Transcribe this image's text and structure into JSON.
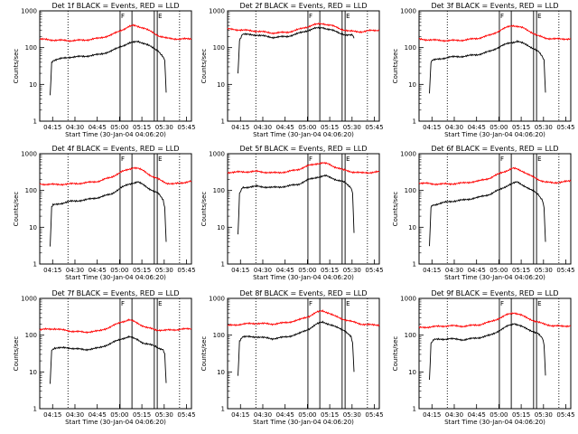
{
  "chart_data": {
    "type": "line",
    "xlabel": "Start Time (30-Jan-04 04:06:20)",
    "ylabel": "Counts/sec",
    "x_ticks": [
      "04:15",
      "04:30",
      "04:45",
      "05:00",
      "05:15",
      "05:30",
      "05:45"
    ],
    "x_tick_minutes": [
      8.67,
      23.67,
      38.67,
      53.67,
      68.67,
      83.67,
      98.67
    ],
    "xlim_minutes": [
      0,
      102
    ],
    "y_scale": "log",
    "ylim": [
      1,
      1000
    ],
    "y_ticks": [
      "1",
      "10",
      "100",
      "1000"
    ],
    "y_tick_values": [
      1,
      10,
      100,
      1000
    ],
    "markers": [
      {
        "label": "",
        "x_minute": 19
      },
      {
        "label": "F",
        "x_minute": 54
      },
      {
        "label": "",
        "x_minute": 62
      },
      {
        "label": "",
        "x_minute": 77
      },
      {
        "label": "E",
        "x_minute": 79
      },
      {
        "label": "",
        "x_minute": 94
      }
    ],
    "series_colors": {
      "events": "#000000",
      "lld": "#ff0000"
    },
    "panels": [
      {
        "title": "Det 1f BLACK = Events, RED = LLD",
        "events": [
          [
            7,
            5
          ],
          [
            8,
            40
          ],
          [
            9,
            45
          ],
          [
            12,
            48
          ],
          [
            20,
            55
          ],
          [
            30,
            58
          ],
          [
            40,
            65
          ],
          [
            48,
            80
          ],
          [
            55,
            110
          ],
          [
            60,
            130
          ],
          [
            66,
            150
          ],
          [
            70,
            130
          ],
          [
            74,
            110
          ],
          [
            78,
            90
          ],
          [
            80,
            80
          ],
          [
            83,
            55
          ],
          [
            84,
            45
          ],
          [
            85,
            6
          ]
        ],
        "lld": [
          [
            0,
            170
          ],
          [
            10,
            160
          ],
          [
            20,
            155
          ],
          [
            30,
            160
          ],
          [
            40,
            180
          ],
          [
            48,
            220
          ],
          [
            55,
            300
          ],
          [
            60,
            370
          ],
          [
            63,
            400
          ],
          [
            66,
            380
          ],
          [
            70,
            340
          ],
          [
            75,
            270
          ],
          [
            80,
            210
          ],
          [
            85,
            180
          ],
          [
            90,
            175
          ],
          [
            95,
            170
          ],
          [
            102,
            175
          ]
        ]
      },
      {
        "title": "Det 2f BLACK = Events, RED = LLD",
        "events": [
          [
            7,
            20
          ],
          [
            8,
            160
          ],
          [
            10,
            230
          ],
          [
            20,
            220
          ],
          [
            30,
            190
          ],
          [
            40,
            200
          ],
          [
            50,
            260
          ],
          [
            58,
            330
          ],
          [
            64,
            350
          ],
          [
            70,
            300
          ],
          [
            75,
            250
          ],
          [
            80,
            220
          ],
          [
            84,
            215
          ],
          [
            85,
            180
          ]
        ],
        "lld": [
          [
            0,
            320
          ],
          [
            10,
            300
          ],
          [
            20,
            280
          ],
          [
            30,
            250
          ],
          [
            40,
            260
          ],
          [
            50,
            330
          ],
          [
            58,
            420
          ],
          [
            64,
            450
          ],
          [
            70,
            400
          ],
          [
            76,
            320
          ],
          [
            82,
            280
          ],
          [
            90,
            270
          ],
          [
            96,
            290
          ],
          [
            102,
            300
          ]
        ]
      },
      {
        "title": "Det 3f BLACK = Events, RED = LLD",
        "events": [
          [
            7,
            6
          ],
          [
            8,
            40
          ],
          [
            9,
            45
          ],
          [
            20,
            55
          ],
          [
            30,
            58
          ],
          [
            40,
            65
          ],
          [
            48,
            80
          ],
          [
            55,
            110
          ],
          [
            60,
            130
          ],
          [
            66,
            150
          ],
          [
            70,
            130
          ],
          [
            74,
            110
          ],
          [
            78,
            90
          ],
          [
            80,
            80
          ],
          [
            83,
            55
          ],
          [
            84,
            45
          ],
          [
            85,
            6
          ]
        ],
        "lld": [
          [
            0,
            170
          ],
          [
            10,
            160
          ],
          [
            20,
            155
          ],
          [
            30,
            160
          ],
          [
            40,
            180
          ],
          [
            48,
            220
          ],
          [
            55,
            300
          ],
          [
            60,
            370
          ],
          [
            63,
            400
          ],
          [
            66,
            380
          ],
          [
            70,
            340
          ],
          [
            75,
            270
          ],
          [
            80,
            210
          ],
          [
            85,
            180
          ],
          [
            90,
            175
          ],
          [
            95,
            170
          ],
          [
            102,
            175
          ]
        ]
      },
      {
        "title": "Det 4f BLACK = Events, RED = LLD",
        "events": [
          [
            7,
            3
          ],
          [
            8,
            35
          ],
          [
            9,
            40
          ],
          [
            20,
            50
          ],
          [
            30,
            55
          ],
          [
            40,
            65
          ],
          [
            48,
            80
          ],
          [
            55,
            120
          ],
          [
            60,
            150
          ],
          [
            66,
            170
          ],
          [
            70,
            140
          ],
          [
            74,
            110
          ],
          [
            78,
            90
          ],
          [
            80,
            80
          ],
          [
            83,
            55
          ],
          [
            84,
            35
          ],
          [
            85,
            4
          ]
        ],
        "lld": [
          [
            0,
            150
          ],
          [
            10,
            145
          ],
          [
            20,
            150
          ],
          [
            30,
            160
          ],
          [
            40,
            180
          ],
          [
            48,
            230
          ],
          [
            55,
            320
          ],
          [
            60,
            380
          ],
          [
            63,
            420
          ],
          [
            66,
            400
          ],
          [
            70,
            340
          ],
          [
            75,
            250
          ],
          [
            80,
            200
          ],
          [
            85,
            160
          ],
          [
            90,
            150
          ],
          [
            95,
            160
          ],
          [
            102,
            180
          ]
        ]
      },
      {
        "title": "Det 5f BLACK = Events, RED = LLD",
        "events": [
          [
            7,
            6
          ],
          [
            8,
            80
          ],
          [
            10,
            120
          ],
          [
            20,
            130
          ],
          [
            30,
            120
          ],
          [
            40,
            130
          ],
          [
            48,
            150
          ],
          [
            55,
            200
          ],
          [
            60,
            230
          ],
          [
            66,
            250
          ],
          [
            70,
            220
          ],
          [
            74,
            190
          ],
          [
            78,
            170
          ],
          [
            80,
            150
          ],
          [
            83,
            120
          ],
          [
            84,
            90
          ],
          [
            85,
            7
          ]
        ],
        "lld": [
          [
            0,
            310
          ],
          [
            10,
            320
          ],
          [
            20,
            330
          ],
          [
            30,
            300
          ],
          [
            40,
            320
          ],
          [
            48,
            380
          ],
          [
            55,
            480
          ],
          [
            60,
            540
          ],
          [
            64,
            560
          ],
          [
            68,
            520
          ],
          [
            72,
            440
          ],
          [
            78,
            360
          ],
          [
            84,
            320
          ],
          [
            90,
            300
          ],
          [
            96,
            310
          ],
          [
            102,
            320
          ]
        ]
      },
      {
        "title": "Det 6f BLACK = Events, RED = LLD",
        "events": [
          [
            7,
            3
          ],
          [
            8,
            35
          ],
          [
            9,
            40
          ],
          [
            20,
            50
          ],
          [
            30,
            55
          ],
          [
            40,
            65
          ],
          [
            48,
            80
          ],
          [
            55,
            110
          ],
          [
            60,
            140
          ],
          [
            66,
            170
          ],
          [
            70,
            140
          ],
          [
            74,
            110
          ],
          [
            78,
            90
          ],
          [
            80,
            80
          ],
          [
            83,
            55
          ],
          [
            84,
            35
          ],
          [
            85,
            4
          ]
        ],
        "lld": [
          [
            0,
            160
          ],
          [
            10,
            150
          ],
          [
            20,
            150
          ],
          [
            30,
            160
          ],
          [
            40,
            180
          ],
          [
            48,
            220
          ],
          [
            55,
            300
          ],
          [
            60,
            360
          ],
          [
            63,
            400
          ],
          [
            66,
            380
          ],
          [
            70,
            330
          ],
          [
            75,
            250
          ],
          [
            80,
            200
          ],
          [
            85,
            170
          ],
          [
            90,
            160
          ],
          [
            95,
            170
          ],
          [
            102,
            180
          ]
        ]
      },
      {
        "title": "Det 7f BLACK = Events, RED = LLD",
        "events": [
          [
            7,
            5
          ],
          [
            8,
            40
          ],
          [
            10,
            45
          ],
          [
            20,
            45
          ],
          [
            30,
            40
          ],
          [
            40,
            45
          ],
          [
            48,
            60
          ],
          [
            55,
            80
          ],
          [
            60,
            90
          ],
          [
            66,
            75
          ],
          [
            70,
            60
          ],
          [
            74,
            55
          ],
          [
            78,
            50
          ],
          [
            80,
            45
          ],
          [
            83,
            40
          ],
          [
            84,
            30
          ],
          [
            85,
            5
          ]
        ],
        "lld": [
          [
            0,
            140
          ],
          [
            10,
            150
          ],
          [
            20,
            130
          ],
          [
            30,
            120
          ],
          [
            40,
            130
          ],
          [
            48,
            170
          ],
          [
            55,
            230
          ],
          [
            60,
            260
          ],
          [
            64,
            230
          ],
          [
            68,
            190
          ],
          [
            72,
            160
          ],
          [
            78,
            140
          ],
          [
            84,
            135
          ],
          [
            90,
            140
          ],
          [
            96,
            145
          ],
          [
            102,
            150
          ]
        ]
      },
      {
        "title": "Det 8f BLACK = Events, RED = LLD",
        "events": [
          [
            7,
            8
          ],
          [
            8,
            70
          ],
          [
            10,
            90
          ],
          [
            20,
            90
          ],
          [
            30,
            80
          ],
          [
            40,
            90
          ],
          [
            48,
            110
          ],
          [
            55,
            150
          ],
          [
            60,
            200
          ],
          [
            64,
            230
          ],
          [
            68,
            200
          ],
          [
            72,
            170
          ],
          [
            78,
            140
          ],
          [
            80,
            120
          ],
          [
            83,
            90
          ],
          [
            84,
            60
          ],
          [
            85,
            10
          ]
        ],
        "lld": [
          [
            0,
            180
          ],
          [
            10,
            200
          ],
          [
            20,
            210
          ],
          [
            30,
            200
          ],
          [
            40,
            220
          ],
          [
            48,
            260
          ],
          [
            55,
            330
          ],
          [
            60,
            420
          ],
          [
            64,
            460
          ],
          [
            68,
            400
          ],
          [
            72,
            330
          ],
          [
            78,
            270
          ],
          [
            84,
            230
          ],
          [
            90,
            200
          ],
          [
            96,
            190
          ],
          [
            102,
            190
          ]
        ]
      },
      {
        "title": "Det 9f BLACK = Events, RED = LLD",
        "events": [
          [
            7,
            6
          ],
          [
            8,
            60
          ],
          [
            10,
            75
          ],
          [
            20,
            80
          ],
          [
            30,
            75
          ],
          [
            40,
            85
          ],
          [
            48,
            100
          ],
          [
            55,
            140
          ],
          [
            60,
            180
          ],
          [
            64,
            210
          ],
          [
            68,
            180
          ],
          [
            72,
            150
          ],
          [
            78,
            120
          ],
          [
            80,
            110
          ],
          [
            83,
            80
          ],
          [
            84,
            55
          ],
          [
            85,
            8
          ]
        ],
        "lld": [
          [
            0,
            160
          ],
          [
            10,
            170
          ],
          [
            20,
            180
          ],
          [
            30,
            175
          ],
          [
            40,
            190
          ],
          [
            48,
            230
          ],
          [
            55,
            300
          ],
          [
            60,
            370
          ],
          [
            64,
            410
          ],
          [
            68,
            360
          ],
          [
            72,
            300
          ],
          [
            78,
            240
          ],
          [
            84,
            200
          ],
          [
            90,
            180
          ],
          [
            96,
            175
          ],
          [
            102,
            180
          ]
        ]
      }
    ]
  }
}
